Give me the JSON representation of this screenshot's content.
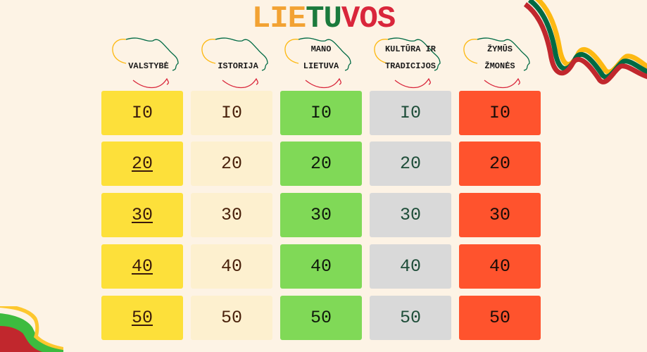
{
  "title": {
    "letters": [
      {
        "ch": "L",
        "color": "#f2a233"
      },
      {
        "ch": "I",
        "color": "#f2a233"
      },
      {
        "ch": "E",
        "color": "#f2a233"
      },
      {
        "ch": "T",
        "color": "#1b7a3c"
      },
      {
        "ch": "U",
        "color": "#1b7a3c"
      },
      {
        "ch": "V",
        "color": "#d9263b"
      },
      {
        "ch": "O",
        "color": "#d9263b"
      },
      {
        "ch": "S",
        "color": "#d9263b"
      }
    ]
  },
  "categories": [
    {
      "lines": [
        "VALSTYBĖ"
      ],
      "tile_color": "#fde03a",
      "text_color": "#3a1a0c",
      "link_rows": [
        1,
        2,
        3,
        4
      ]
    },
    {
      "lines": [
        "ISTORIJA"
      ],
      "tile_color": "#fdf0cf",
      "text_color": "#4a220c",
      "link_rows": []
    },
    {
      "lines": [
        "MANO",
        "LIETUVA"
      ],
      "tile_color": "#80d957",
      "text_color": "#0f1a0c",
      "link_rows": []
    },
    {
      "lines": [
        "KULTŪRA IR",
        "TRADICIJOS"
      ],
      "tile_color": "#d9d9d9",
      "text_color": "#1e4d39",
      "link_rows": []
    },
    {
      "lines": [
        "ŽYMŪS",
        "ŽMONĖS"
      ],
      "tile_color": "#ff532d",
      "text_color": "#1a0c08",
      "link_rows": []
    }
  ],
  "values": [
    "I0",
    "20",
    "30",
    "40",
    "50"
  ],
  "flag_colors": {
    "yellow": "#fdb913",
    "green": "#006a44",
    "red": "#c1272d"
  }
}
